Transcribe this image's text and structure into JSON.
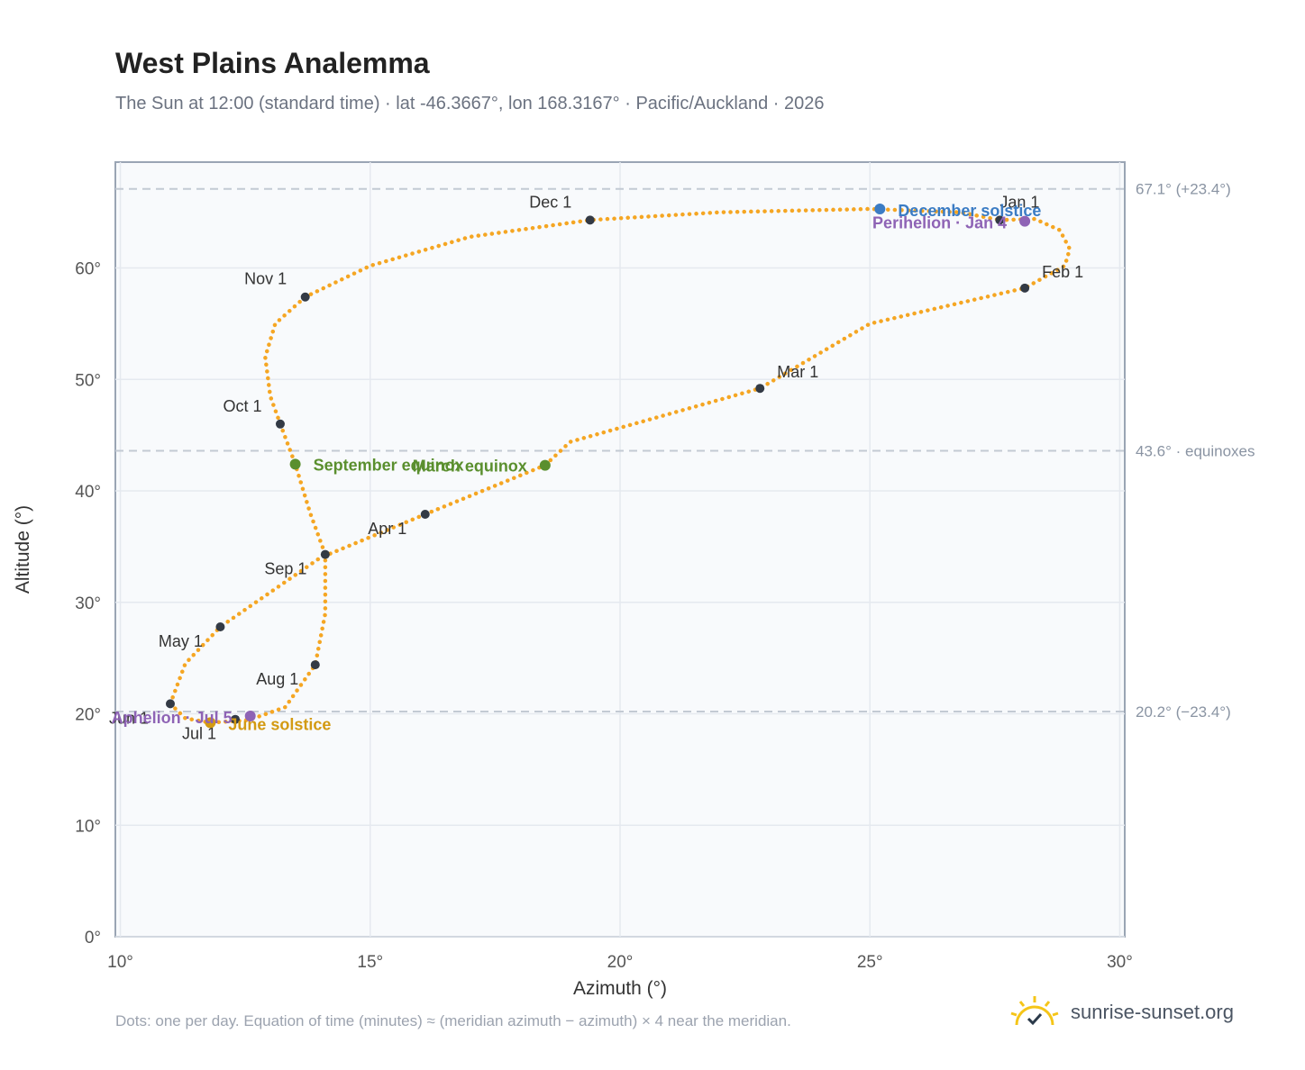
{
  "header": {
    "title": "West Plains Analemma",
    "subtitle": "The Sun at 12:00 (standard time) · lat -46.3667°, lon 168.3167° · Pacific/Auckland · 2026"
  },
  "footer": {
    "note": "Dots: one per day. Equation of time (minutes) ≈ (meridian azimuth − azimuth) × 4 near the meridian.",
    "brand": "sunrise-sunset.org",
    "brand_icon": "sun-logo-icon"
  },
  "colors": {
    "path": "#f5a623",
    "month_marker": "#333a45",
    "equinox": "#5a8f2e",
    "june_solstice": "#d39a12",
    "december_solstice": "#3b7cc4",
    "apsis": "#8e63b5",
    "grid": "#e5e9ef",
    "ref_line": "#c3cad3",
    "plot_bg": "#f8fafc",
    "plot_border": "#9aa5b4"
  },
  "chart_data": {
    "type": "scatter",
    "title": "West Plains Analemma",
    "xlabel": "Azimuth (°)",
    "ylabel": "Altitude (°)",
    "xlim": [
      9.9,
      30.1
    ],
    "ylim": [
      0,
      69.5
    ],
    "xticks": [
      10,
      15,
      20,
      25,
      30
    ],
    "xtick_labels": [
      "10°",
      "15°",
      "20°",
      "25°",
      "30°"
    ],
    "yticks": [
      0,
      10,
      20,
      30,
      40,
      50,
      60
    ],
    "ytick_labels": [
      "0°",
      "10°",
      "20°",
      "30°",
      "40°",
      "50°",
      "60°"
    ],
    "grid": true,
    "reference_lines": [
      {
        "y": 67.1,
        "label": "67.1° (+23.4°)"
      },
      {
        "y": 43.6,
        "label": "43.6° · equinoxes"
      },
      {
        "y": 20.2,
        "label": "20.2° (−23.4°)"
      }
    ],
    "series": [
      {
        "points": [
          [
            27.6,
            64.3
          ],
          [
            28.3,
            64.4
          ],
          [
            28.8,
            63.4
          ],
          [
            29.0,
            61.7
          ],
          [
            28.9,
            60.2
          ],
          [
            28.1,
            58.2
          ],
          [
            25.0,
            55.0
          ],
          [
            22.8,
            49.2
          ],
          [
            19.0,
            44.4
          ],
          [
            18.5,
            42.3
          ],
          [
            16.1,
            37.9
          ],
          [
            14.0,
            34.0
          ],
          [
            12.0,
            27.8
          ],
          [
            11.3,
            24.5
          ],
          [
            11.0,
            20.9
          ],
          [
            11.3,
            19.6
          ],
          [
            11.8,
            19.2
          ],
          [
            12.5,
            19.4
          ],
          [
            12.8,
            19.8
          ],
          [
            13.3,
            20.6
          ],
          [
            13.9,
            24.4
          ],
          [
            14.1,
            29.0
          ],
          [
            14.1,
            34.3
          ],
          [
            13.8,
            38.0
          ],
          [
            13.5,
            42.4
          ],
          [
            13.2,
            46.0
          ],
          [
            13.0,
            48.5
          ],
          [
            12.9,
            52.0
          ],
          [
            13.1,
            55.0
          ],
          [
            13.7,
            57.4
          ],
          [
            15.0,
            60.2
          ],
          [
            17.0,
            62.8
          ],
          [
            19.4,
            64.3
          ],
          [
            22.0,
            65.0
          ],
          [
            25.0,
            65.3
          ],
          [
            26.8,
            65.0
          ],
          [
            27.6,
            64.3
          ]
        ]
      }
    ],
    "month_markers": [
      {
        "label": "Jan 1",
        "x": 27.6,
        "y": 64.3,
        "label_dx": 22,
        "label_dy": -14
      },
      {
        "label": "Feb 1",
        "x": 28.1,
        "y": 58.2,
        "label_dx": 42,
        "label_dy": -12
      },
      {
        "label": "Mar 1",
        "x": 22.8,
        "y": 49.2,
        "label_dx": 42,
        "label_dy": -12
      },
      {
        "label": "Apr 1",
        "x": 16.1,
        "y": 37.9,
        "label_dx": -42,
        "label_dy": 22
      },
      {
        "label": "May 1",
        "x": 12.0,
        "y": 27.8,
        "label_dx": -44,
        "label_dy": 22
      },
      {
        "label": "Jun 1",
        "x": 11.0,
        "y": 20.9,
        "label_dx": -46,
        "label_dy": 22
      },
      {
        "label": "Jul 1",
        "x": 12.3,
        "y": 19.5,
        "label_dx": -40,
        "label_dy": 22
      },
      {
        "label": "Aug 1",
        "x": 13.9,
        "y": 24.4,
        "label_dx": -42,
        "label_dy": 22
      },
      {
        "label": "Sep 1",
        "x": 14.1,
        "y": 34.3,
        "label_dx": -44,
        "label_dy": 22
      },
      {
        "label": "Oct 1",
        "x": 13.2,
        "y": 46.0,
        "label_dx": -42,
        "label_dy": -14
      },
      {
        "label": "Nov 1",
        "x": 13.7,
        "y": 57.4,
        "label_dx": -44,
        "label_dy": -14
      },
      {
        "label": "Dec 1",
        "x": 19.4,
        "y": 64.3,
        "label_dx": -44,
        "label_dy": -14
      }
    ],
    "events": [
      {
        "label": "September equinox",
        "x": 13.5,
        "y": 42.4,
        "color": "#5a8f2e",
        "anchor": "start",
        "label_dx": 20,
        "label_dy": 7
      },
      {
        "label": "March equinox",
        "x": 18.5,
        "y": 42.3,
        "color": "#5a8f2e",
        "anchor": "end",
        "label_dx": -20,
        "label_dy": 7
      },
      {
        "label": "June solstice",
        "x": 11.8,
        "y": 19.2,
        "color": "#d39a12",
        "anchor": "start",
        "label_dx": 20,
        "label_dy": 8
      },
      {
        "label": "Aphelion · Jul 5",
        "x": 12.6,
        "y": 19.8,
        "color": "#8e63b5",
        "anchor": "end",
        "label_dx": -20,
        "label_dy": 8
      },
      {
        "label": "December solstice",
        "x": 25.2,
        "y": 65.3,
        "color": "#3b7cc4",
        "anchor": "start",
        "label_dx": 20,
        "label_dy": 8
      },
      {
        "label": "Perihelion · Jan 4",
        "x": 28.1,
        "y": 64.2,
        "color": "#8e63b5",
        "anchor": "end",
        "label_dx": -20,
        "label_dy": 8
      }
    ]
  }
}
